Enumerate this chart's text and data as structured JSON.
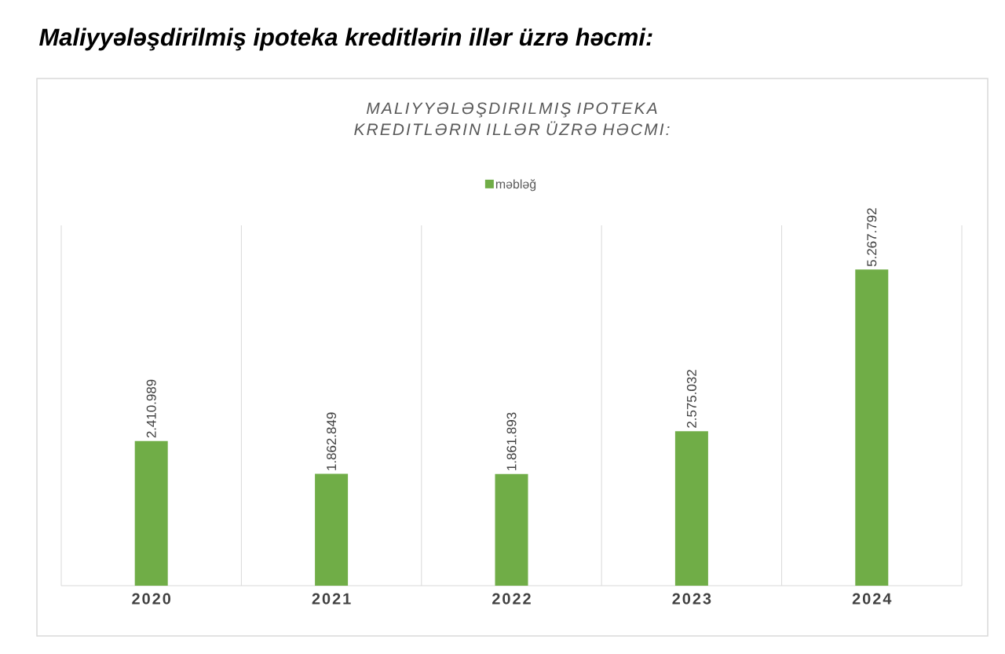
{
  "chart_data": {
    "type": "bar",
    "title": "**Maliyyələşdirilmiş ipoteka kreditlərin illər üzrə həcmi:**",
    "subtitle": "MALIYYƏLƏŞDIRILMIŞ IPOTEKA KREDITLƏRIN ILLƏR ÜZRƏ HƏCMI:",
    "categories": [
      "2020",
      "2021",
      "2022",
      "2023",
      "2024"
    ],
    "series": [
      {
        "name": "məbləğ",
        "color": "#70ad47",
        "values": [
          2410989,
          1862849,
          1861893,
          2575032,
          5267792
        ],
        "value_labels": [
          "2.410.989",
          "1.862.849",
          "1.861.893",
          "2.575.032",
          "5.267.792"
        ]
      }
    ],
    "grid": "x",
    "legend": "top"
  }
}
